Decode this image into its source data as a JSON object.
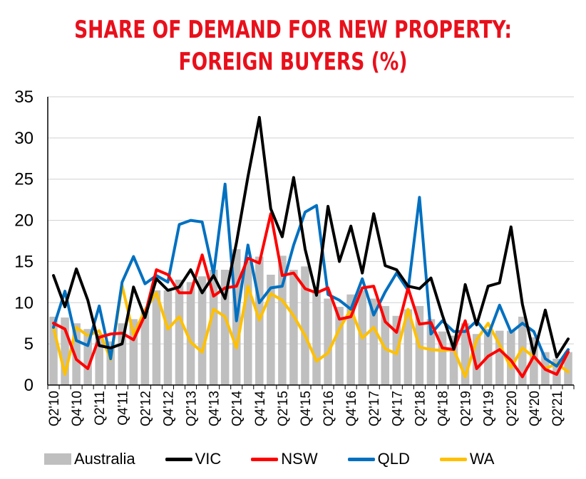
{
  "title_line1": "SHARE OF DEMAND FOR NEW PROPERTY:",
  "title_line2": "FOREIGN BUYERS (%)",
  "colors": {
    "title": "#e8101b",
    "Australia": "#bfbfbf",
    "VIC": "#000000",
    "NSW": "#ff0000",
    "QLD": "#0070c0",
    "WA": "#ffc000"
  },
  "chart_data": {
    "type": "bar+line",
    "title": "SHARE OF DEMAND FOR NEW PROPERTY: FOREIGN BUYERS (%)",
    "xlabel": "",
    "ylabel": "",
    "ylim": [
      0,
      35
    ],
    "yticks": [
      0,
      5,
      10,
      15,
      20,
      25,
      30,
      35
    ],
    "grid": "horizontal",
    "legend_position": "bottom",
    "categories": [
      "Q2'10",
      "Q3'10",
      "Q4'10",
      "Q1'11",
      "Q2'11",
      "Q3'11",
      "Q4'11",
      "Q1'12",
      "Q2'12",
      "Q3'12",
      "Q4'12",
      "Q1'13",
      "Q2'13",
      "Q3'13",
      "Q4'13",
      "Q1'14",
      "Q2'14",
      "Q3'14",
      "Q4'14",
      "Q1'15",
      "Q2'15",
      "Q3'15",
      "Q4'15",
      "Q1'16",
      "Q2'16",
      "Q3'16",
      "Q4'16",
      "Q1'17",
      "Q2'17",
      "Q3'17",
      "Q4'17",
      "Q1'18",
      "Q2'18",
      "Q3'18",
      "Q4'18",
      "Q1'19",
      "Q2'19",
      "Q3'19",
      "Q4'19",
      "Q1'20",
      "Q2'20",
      "Q3'20",
      "Q4'20",
      "Q1'21",
      "Q2'21",
      "Q3'21"
    ],
    "tick_labels": [
      "Q2'10",
      "Q4'10",
      "Q2'11",
      "Q4'11",
      "Q2'12",
      "Q4'12",
      "Q2'13",
      "Q4'13",
      "Q2'14",
      "Q4'14",
      "Q2'15",
      "Q4'15",
      "Q2'16",
      "Q4'16",
      "Q2'17",
      "Q4'17",
      "Q2'18",
      "Q4'18",
      "Q2'19",
      "Q4'19",
      "Q2'20",
      "Q4'20",
      "Q2'21"
    ],
    "series": [
      {
        "name": "Australia",
        "type": "bar",
        "values": [
          8.3,
          8.2,
          7.5,
          6.8,
          6.2,
          5.3,
          7.5,
          8.0,
          9.0,
          11.5,
          11.5,
          12.8,
          12.5,
          13.2,
          14.0,
          14.0,
          16.5,
          15.0,
          15.6,
          13.4,
          15.7,
          14.0,
          14.4,
          11.5,
          10.5,
          9.5,
          11.0,
          11.5,
          10.5,
          9.6,
          8.4,
          9.2,
          9.6,
          8.0,
          6.5,
          6.0,
          7.5,
          6.2,
          6.8,
          6.6,
          6.6,
          8.3,
          5.8,
          4.0,
          3.2,
          4.0
        ]
      },
      {
        "name": "VIC",
        "type": "line",
        "values": [
          13.3,
          9.5,
          14.1,
          10.3,
          4.8,
          4.5,
          5.0,
          11.9,
          8.2,
          12.9,
          11.5,
          11.9,
          14.0,
          11.2,
          13.3,
          10.5,
          17.3,
          25.3,
          32.5,
          21.4,
          18.0,
          25.2,
          16.5,
          10.9,
          21.7,
          15.0,
          19.3,
          13.6,
          20.8,
          14.5,
          14.0,
          12.0,
          11.7,
          13.0,
          8.5,
          4.4,
          12.2,
          7.3,
          12.0,
          12.4,
          19.2,
          9.8,
          3.8,
          9.1,
          3.4,
          5.6
        ]
      },
      {
        "name": "NSW",
        "type": "line",
        "values": [
          7.5,
          6.8,
          3.1,
          2.0,
          5.8,
          6.2,
          6.3,
          5.5,
          8.5,
          14.0,
          13.4,
          11.2,
          11.2,
          15.8,
          10.8,
          11.8,
          12.0,
          15.4,
          14.8,
          20.8,
          13.3,
          13.6,
          11.7,
          11.2,
          11.8,
          8.0,
          8.3,
          11.8,
          12.0,
          7.7,
          6.4,
          11.8,
          7.4,
          7.6,
          4.5,
          4.3,
          7.8,
          2.0,
          3.5,
          4.3,
          3.0,
          1.0,
          3.5,
          1.9,
          1.3,
          4.0
        ]
      },
      {
        "name": "QLD",
        "type": "line",
        "values": [
          7.0,
          11.4,
          5.4,
          4.8,
          9.6,
          3.2,
          12.5,
          15.6,
          12.3,
          13.3,
          12.5,
          19.5,
          20.0,
          19.8,
          13.5,
          24.4,
          7.8,
          17.0,
          10.0,
          11.8,
          12.0,
          17.0,
          21.0,
          21.8,
          11.0,
          10.3,
          9.2,
          12.9,
          8.5,
          11.3,
          13.6,
          11.5,
          22.8,
          6.2,
          7.8,
          6.5,
          6.5,
          7.8,
          6.0,
          9.7,
          6.4,
          7.5,
          6.5,
          3.2,
          2.3,
          4.3
        ]
      },
      {
        "name": "WA",
        "type": "line",
        "values": [
          7.0,
          1.3,
          7.0,
          6.0,
          6.6,
          3.1,
          12.1,
          6.1,
          9.1,
          11.2,
          6.8,
          8.3,
          5.2,
          4.0,
          9.2,
          8.3,
          4.5,
          12.0,
          7.9,
          11.1,
          10.3,
          8.4,
          6.0,
          2.9,
          3.9,
          6.8,
          9.2,
          5.7,
          7.0,
          4.4,
          3.8,
          9.2,
          4.6,
          4.3,
          4.2,
          4.3,
          1.0,
          5.5,
          7.5,
          4.9,
          2.1,
          4.5,
          3.4,
          2.0,
          2.6,
          1.6
        ]
      }
    ]
  }
}
